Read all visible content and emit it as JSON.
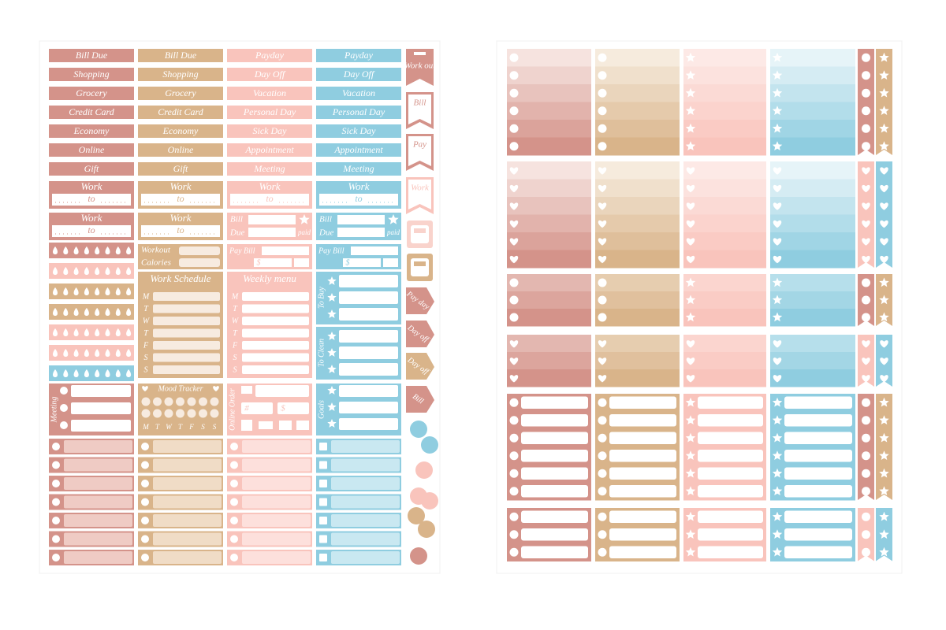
{
  "left_sheet": {
    "label_columns": [
      [
        "Bill Due",
        "Shopping",
        "Grocery",
        "Credit Card",
        "Economy",
        "Online",
        "Gift"
      ],
      [
        "Bill Due",
        "Shopping",
        "Grocery",
        "Credit Card",
        "Economy",
        "Online",
        "Gift"
      ],
      [
        "Payday",
        "Day Off",
        "Vacation",
        "Personal Day",
        "Sick Day",
        "Appointment",
        "Meeting"
      ],
      [
        "Payday",
        "Day Off",
        "Vacation",
        "Personal Day",
        "Sick Day",
        "Appointment",
        "Meeting"
      ]
    ],
    "work_boxes": [
      {
        "title": "Work",
        "to": "to"
      },
      {
        "title": "Work",
        "to": "to"
      },
      {
        "title": "Work",
        "to": "to"
      },
      {
        "title": "Work",
        "to": "to"
      },
      {
        "title": "Work",
        "to": "to"
      },
      {
        "title": "Work",
        "to": "to"
      }
    ],
    "bill_due_boxes": [
      {
        "bill": "Bill",
        "due": "Due",
        "paid": "paid"
      },
      {
        "bill": "Bill",
        "due": "Due",
        "paid": "paid"
      }
    ],
    "workout_box": {
      "workout": "Workout",
      "calories": "Calories"
    },
    "pay_bill_boxes": [
      {
        "title": "Pay Bill",
        "currency": "$"
      },
      {
        "title": "Pay Bill",
        "currency": "$"
      }
    ],
    "work_schedule": {
      "title": "Work Schedule",
      "days": [
        "M",
        "T",
        "W",
        "T",
        "F",
        "S",
        "S"
      ]
    },
    "weekly_menu": {
      "title": "Weekly menu",
      "days": [
        "M",
        "T",
        "W",
        "T",
        "F",
        "S",
        "S"
      ]
    },
    "lists": [
      {
        "title": "To Buy"
      },
      {
        "title": "To Clean"
      }
    ],
    "meeting": {
      "title": "Meeting"
    },
    "mood_tracker": {
      "title": "Mood Tracker",
      "days": [
        "M",
        "T",
        "W",
        "T",
        "F",
        "S",
        "S"
      ]
    },
    "online_order": {
      "title": "Online Order",
      "hash": "#",
      "currency": "$"
    },
    "goals": {
      "title": "Goals"
    },
    "flags": [
      "Work out",
      "Bill",
      "Pay",
      "Work"
    ],
    "tabs": [
      "Pay day",
      "Day off",
      "Day off",
      "Bill"
    ]
  }
}
